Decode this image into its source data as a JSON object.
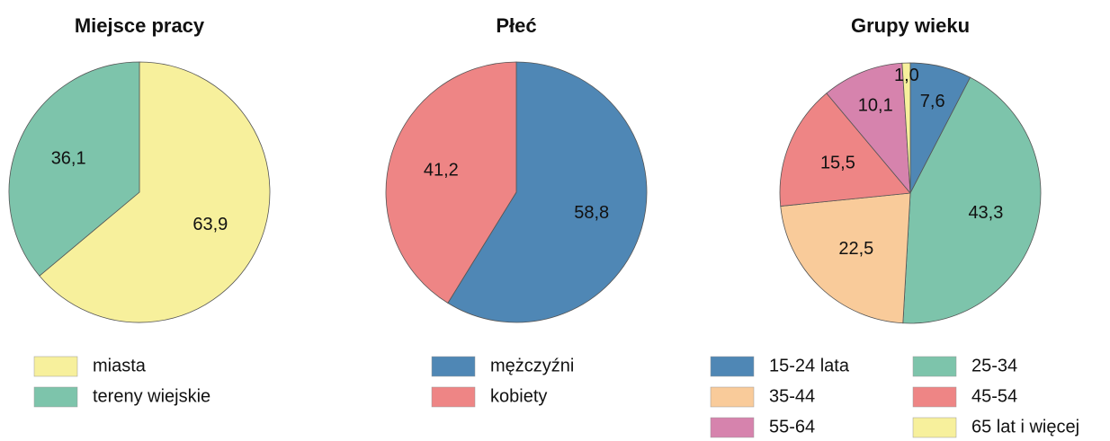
{
  "chart_data": [
    {
      "type": "pie",
      "title": "Miejsce pracy",
      "categories": [
        "miasta",
        "tereny wiejskie"
      ],
      "values": [
        63.9,
        36.1
      ],
      "value_labels": [
        "63,9",
        "36,1"
      ],
      "colors": [
        "#f7f09c",
        "#7dc4ab"
      ]
    },
    {
      "type": "pie",
      "title": "Płeć",
      "categories": [
        "mężczyźni",
        "kobiety"
      ],
      "values": [
        58.8,
        41.2
      ],
      "value_labels": [
        "58,8",
        "41,2"
      ],
      "colors": [
        "#4f87b5",
        "#ee8585"
      ]
    },
    {
      "type": "pie",
      "title": "Grupy wieku",
      "categories": [
        "15-24 lata",
        "25-34",
        "35-44",
        "45-54",
        "55-64",
        "65 lat i więcej"
      ],
      "values": [
        7.6,
        43.3,
        22.5,
        15.5,
        10.1,
        1.0
      ],
      "value_labels": [
        "7,6",
        "43,3",
        "22,5",
        "15,5",
        "10,1",
        "1,0"
      ],
      "colors": [
        "#4f87b5",
        "#7dc4ab",
        "#f9cb9a",
        "#ee8585",
        "#d683ad",
        "#f7f09c"
      ]
    }
  ]
}
